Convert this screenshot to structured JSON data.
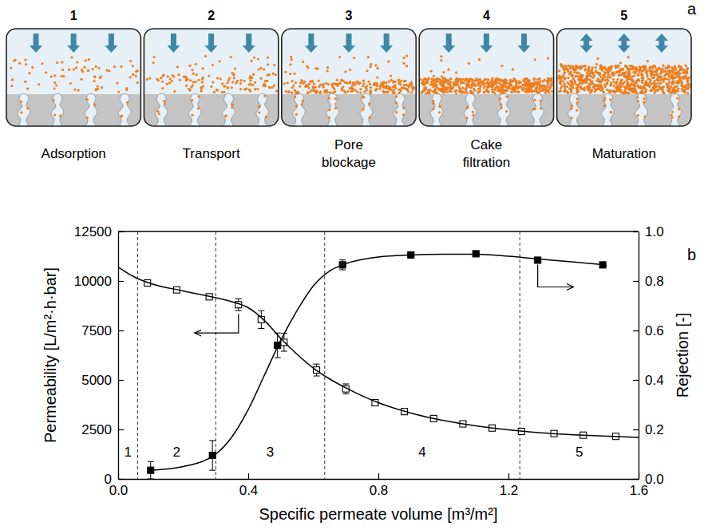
{
  "diagram": {
    "panel_label": "a",
    "stages": [
      {
        "number": "1",
        "label": "Adsorption"
      },
      {
        "number": "2",
        "label": "Transport"
      },
      {
        "number": "3",
        "label": "Pore blockage"
      },
      {
        "number": "4",
        "label": "Cake filtration"
      },
      {
        "number": "5",
        "label": "Maturation"
      }
    ]
  },
  "chart_data": {
    "type": "line",
    "panel_label": "b",
    "x_label": "Specific permeate volume [m³/m²]",
    "y_label": "Permeability [L/m²·h·bar]",
    "y2_label": "Rejection [-]",
    "xlim": [
      0,
      1.6
    ],
    "xticks": [
      {
        "value": 0,
        "label": "0.0"
      },
      0.4,
      0.8,
      1.2,
      1.6
    ],
    "ylim": [
      0,
      12500
    ],
    "yticks": [
      0,
      2500,
      5000,
      7500,
      10000,
      12500
    ],
    "y2lim": [
      0,
      1
    ],
    "y2ticks": [
      {
        "value": 0,
        "label": "0.0"
      },
      0.2,
      0.4,
      0.6,
      0.8,
      {
        "value": 1,
        "label": "1.0"
      }
    ],
    "grid": false,
    "stage_labels": [
      "1",
      "2",
      "3",
      "4",
      "5"
    ],
    "stage_boundaries": [
      0.06,
      0.3,
      0.635,
      1.235
    ],
    "series": [
      {
        "type": "scatter",
        "marker": "square-open",
        "color": "#000000",
        "x": [
          0.09,
          0.18,
          0.28,
          0.37,
          0.44,
          0.51,
          0.61,
          0.7,
          0.79,
          0.88,
          0.97,
          1.06,
          1.15,
          1.24,
          1.34,
          1.43,
          1.53
        ],
        "values": [
          9900,
          9550,
          9200,
          8800,
          8050,
          6900,
          5500,
          4550,
          3850,
          3400,
          3050,
          2780,
          2570,
          2400,
          2290,
          2210,
          2150
        ],
        "error": [
          80,
          80,
          100,
          300,
          450,
          450,
          300,
          250,
          150,
          100,
          80,
          70,
          60,
          60,
          60,
          60,
          60
        ]
      },
      {
        "type": "line",
        "line_style": "solid",
        "color": "#000000",
        "x": [
          0,
          0.05,
          0.1,
          0.2,
          0.3,
          0.35,
          0.4,
          0.45,
          0.5,
          0.55,
          0.6,
          0.65,
          0.7,
          0.75,
          0.8,
          0.9,
          1.0,
          1.1,
          1.2,
          1.3,
          1.4,
          1.5,
          1.6
        ],
        "values": [
          10700,
          10200,
          9870,
          9500,
          9150,
          8950,
          8650,
          8000,
          7100,
          6300,
          5600,
          5050,
          4600,
          4200,
          3850,
          3330,
          2950,
          2680,
          2480,
          2330,
          2230,
          2160,
          2100
        ]
      },
      {
        "type": "scatter",
        "marker": "square",
        "color": "#000000",
        "axis": "y2",
        "x": [
          0.1,
          0.29,
          0.49,
          0.69,
          0.9,
          1.1,
          1.29,
          1.49
        ],
        "values": [
          0.035,
          0.095,
          0.54,
          0.865,
          0.905,
          0.91,
          0.884,
          0.865
        ],
        "error": [
          0.035,
          0.06,
          0.05,
          0.02,
          0.005,
          0.005,
          0.005,
          0.005
        ]
      },
      {
        "type": "line",
        "line_style": "solid",
        "color": "#000000",
        "axis": "y2",
        "x": [
          0.1,
          0.2,
          0.3,
          0.35,
          0.4,
          0.45,
          0.5,
          0.55,
          0.6,
          0.65,
          0.7,
          0.8,
          0.9,
          1.0,
          1.1,
          1.2,
          1.3,
          1.4,
          1.5
        ],
        "values": [
          0.035,
          0.05,
          0.1,
          0.17,
          0.28,
          0.42,
          0.56,
          0.68,
          0.78,
          0.84,
          0.87,
          0.897,
          0.905,
          0.908,
          0.908,
          0.9,
          0.888,
          0.877,
          0.865
        ]
      }
    ]
  }
}
